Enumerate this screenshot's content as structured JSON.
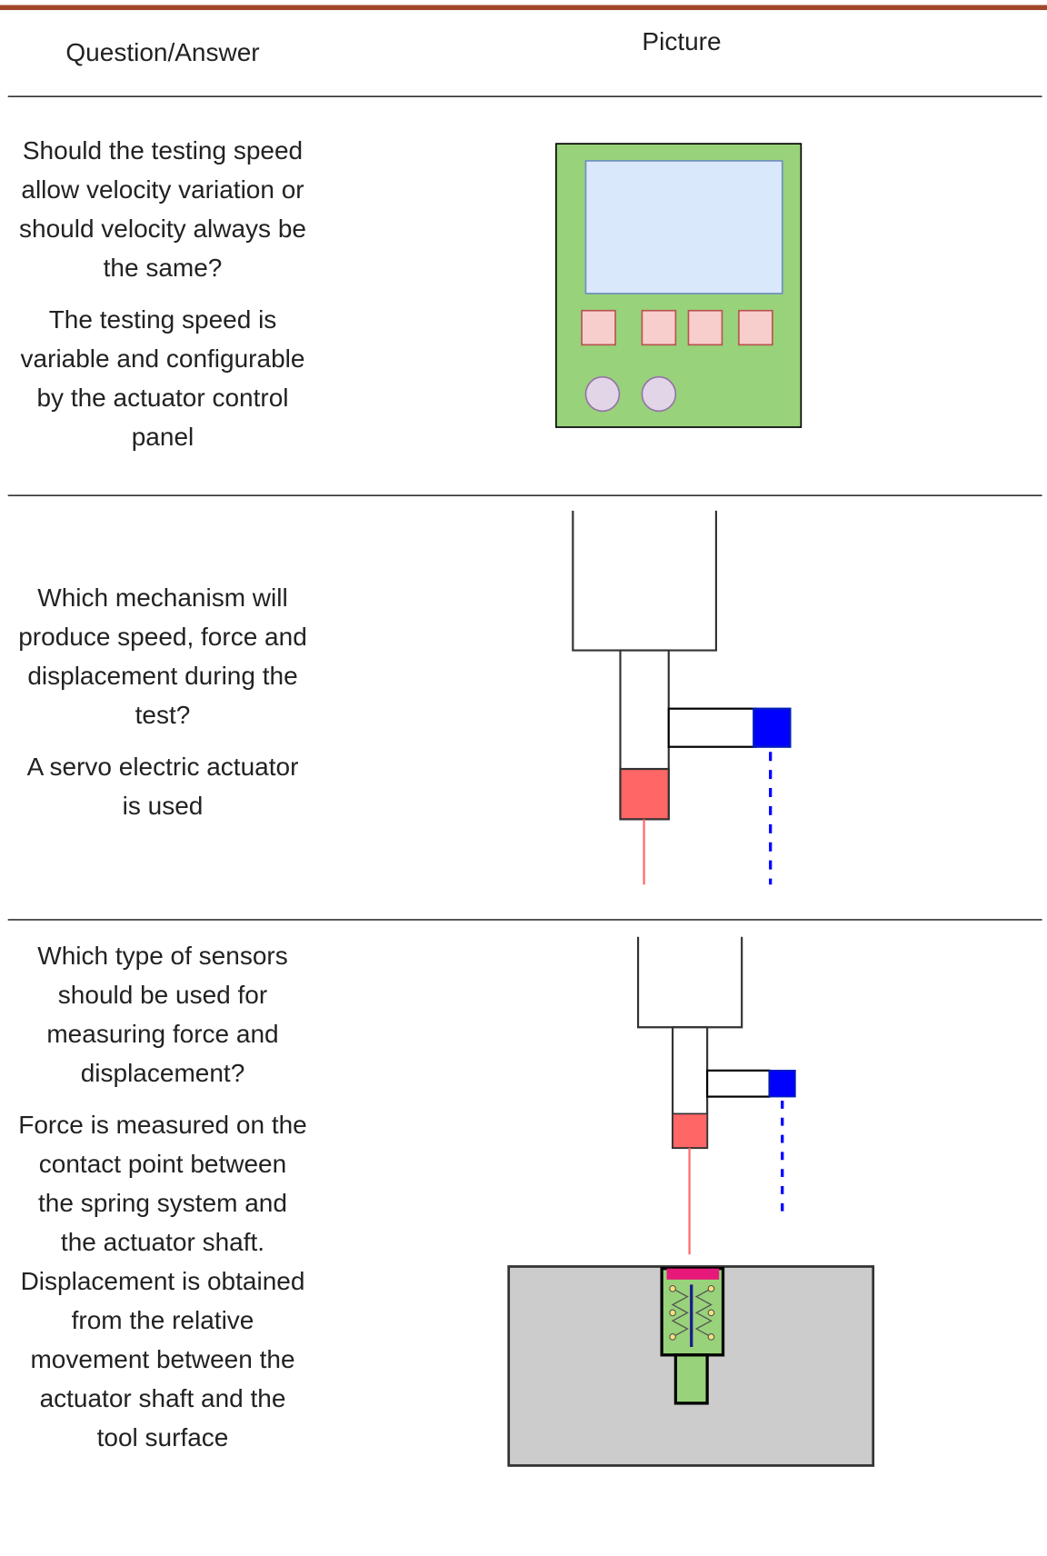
{
  "header": {
    "question_answer": "Question/Answer",
    "picture": "Picture"
  },
  "rows": [
    {
      "question": "Should the testing speed allow velocity variation or should velocity always be the same?",
      "answer": "The testing speed is variable and configurable by the actuator control panel"
    },
    {
      "question": "Which mechanism will produce speed, force and displacement during the test?",
      "answer": "A servo electric actuator is used"
    },
    {
      "question": "Which type of sensors should be used for measuring force and displacement?",
      "answer": "Force is measured on the contact point between the spring system and the actuator shaft. Displacement is obtained from the relative movement between the actuator shaft and the tool surface"
    }
  ]
}
